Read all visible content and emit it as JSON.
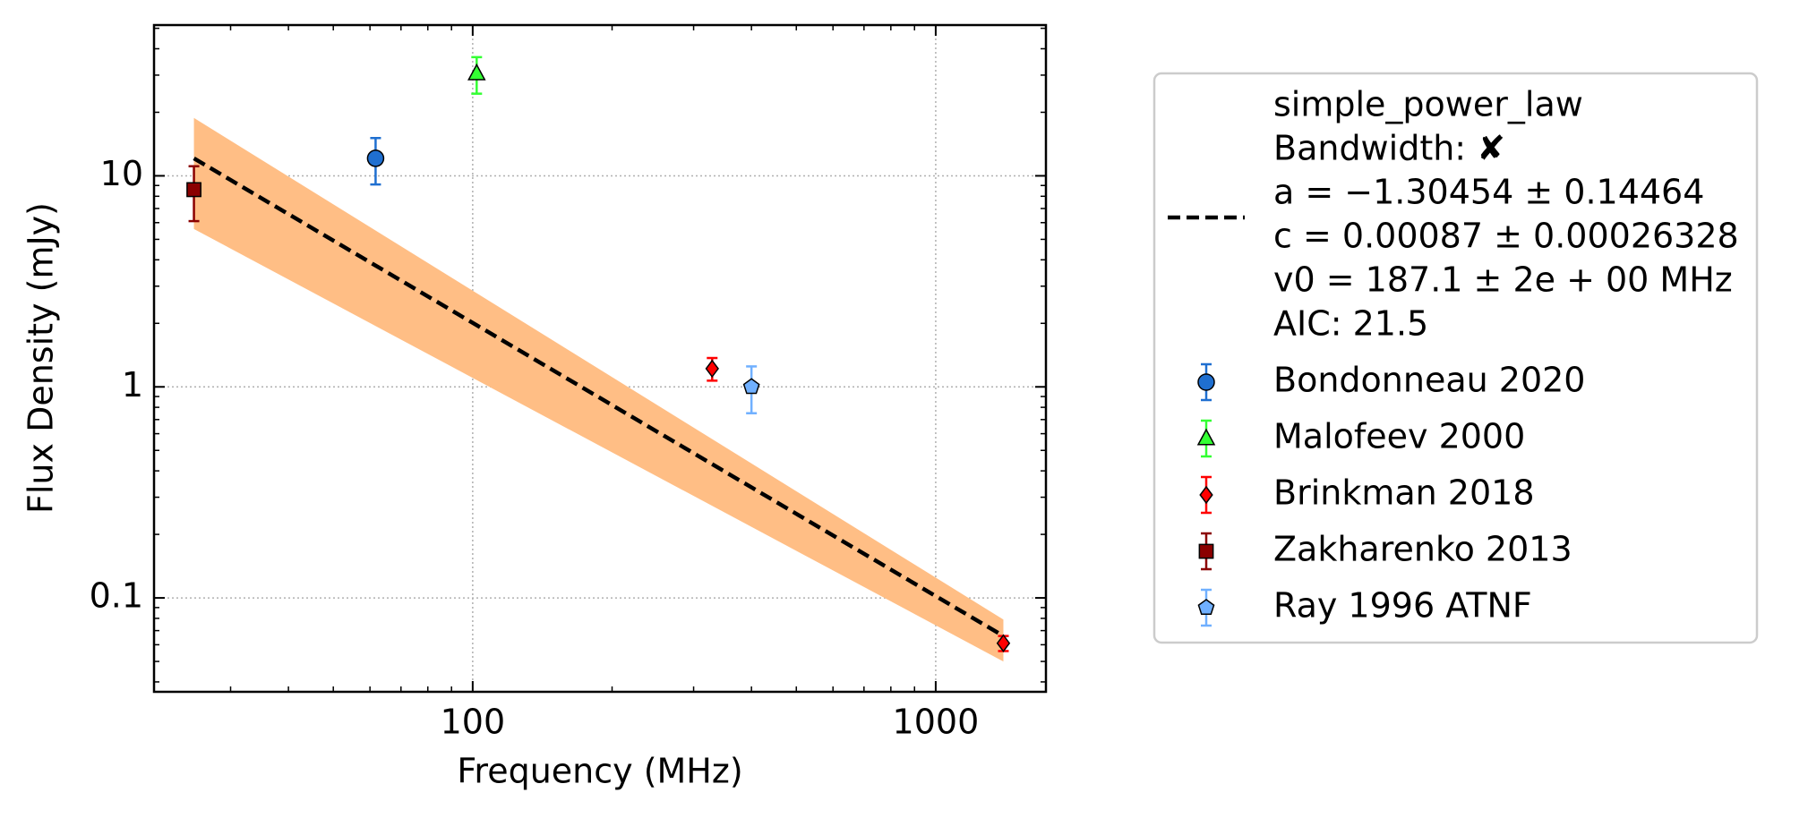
{
  "chart_data": {
    "type": "scatter",
    "xlabel": "Frequency (MHz)",
    "ylabel": "Flux Density (mJy)",
    "xscale": "log",
    "yscale": "log",
    "xlim": [
      20.5,
      1730
    ],
    "ylim": [
      0.0359,
      51.8
    ],
    "xticks": [
      100,
      1000
    ],
    "yticks": [
      0.1,
      1,
      10
    ],
    "xminorticks": [
      30,
      40,
      50,
      60,
      70,
      80,
      90,
      200,
      300,
      400,
      500,
      600,
      700,
      800,
      900
    ],
    "yminorticks": [
      0.04,
      0.05,
      0.06,
      0.07,
      0.08,
      0.09,
      0.2,
      0.3,
      0.4,
      0.5,
      0.6,
      0.7,
      0.8,
      0.9,
      2,
      3,
      4,
      5,
      6,
      7,
      8,
      9,
      20,
      30,
      40,
      50
    ],
    "grid": true,
    "legend": "outside right",
    "fit": {
      "color": "#000000",
      "legend": [
        "simple_power_law",
        "Bandwidth: ✘",
        "a = −1.30454 ± 0.14464",
        "c = 0.00087 ± 0.00026328",
        "v0 = 187.1 ± 2e + 00 MHz",
        "AIC: 21.5"
      ],
      "x": [
        25,
        1400
      ],
      "values": [
        12.1,
        0.066
      ]
    },
    "band": {
      "color": "#ffbe85",
      "x": [
        25,
        1400
      ],
      "upper": [
        18.8,
        0.079
      ],
      "lower": [
        5.6,
        0.05
      ]
    },
    "series": [
      {
        "name": "Bondonneau 2020",
        "color": "#1f6fd0",
        "marker": "circle",
        "x": [
          61.7
        ],
        "values": [
          12.1
        ],
        "errors": [
          3
        ]
      },
      {
        "name": "Malofeev 2000",
        "color": "#33ff33",
        "marker": "triangle",
        "x": [
          102
        ],
        "values": [
          30.5
        ],
        "errors": [
          6
        ]
      },
      {
        "name": "Brinkman 2018",
        "color": "#ff0000",
        "marker": "diamond",
        "x": [
          329,
          1400
        ],
        "values": [
          1.22,
          0.061
        ],
        "errors": [
          0.15,
          0.005
        ]
      },
      {
        "name": "Zakharenko 2013",
        "color": "#8b0000",
        "marker": "square",
        "x": [
          25
        ],
        "values": [
          8.6
        ],
        "errors": [
          2.5
        ]
      },
      {
        "name": "Ray 1996 ATNF",
        "color": "#70b0ff",
        "marker": "pentagon",
        "x": [
          400
        ],
        "values": [
          1.0
        ],
        "errors": [
          0.25
        ]
      }
    ]
  }
}
